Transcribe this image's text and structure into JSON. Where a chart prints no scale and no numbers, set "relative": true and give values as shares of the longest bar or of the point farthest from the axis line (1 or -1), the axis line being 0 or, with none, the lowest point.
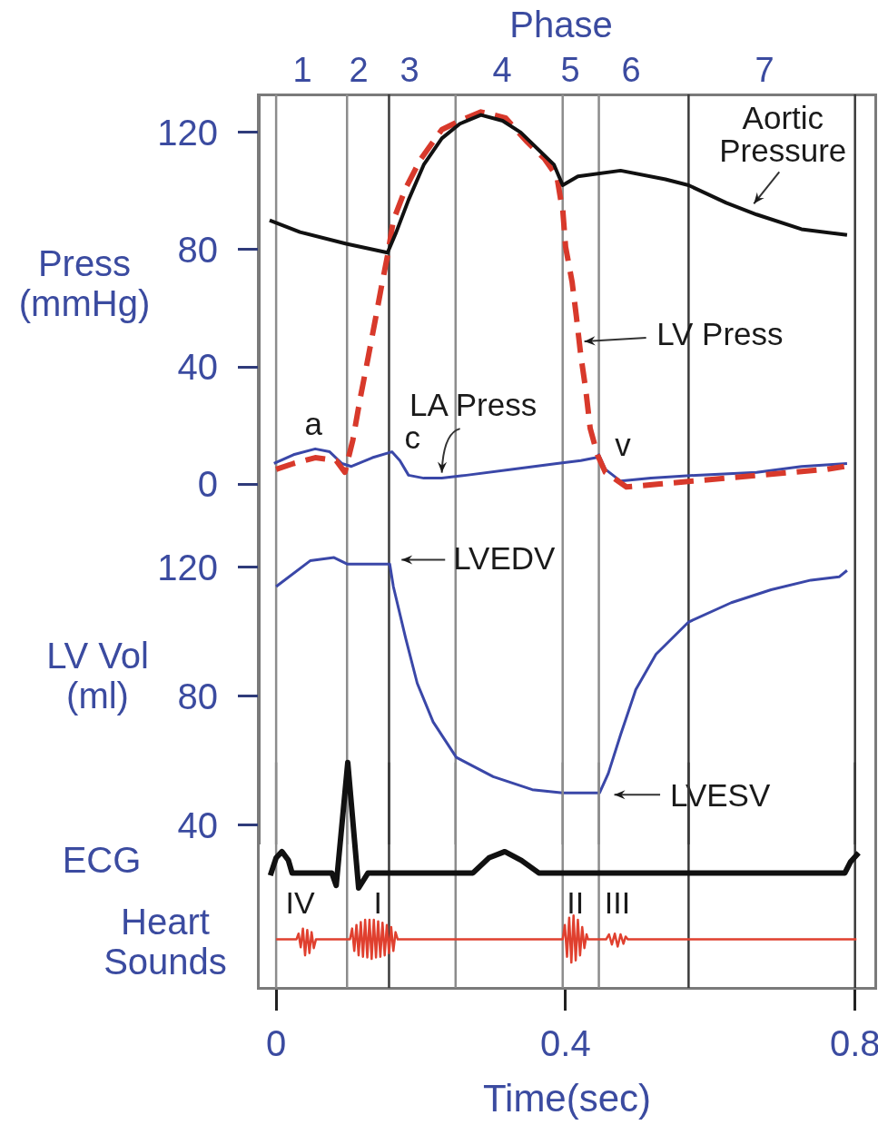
{
  "chart_data": [
    {
      "type": "line",
      "title": "Phase",
      "ylabel": "Press (mmHg)",
      "xlim": [
        -0.024,
        0.828
      ],
      "ylim": [
        -13,
        133
      ],
      "yticks": [
        0,
        40,
        80,
        120
      ],
      "tick_labels": "y",
      "ref_lines": [
        {
          "axis": "x",
          "value": 0,
          "color": "#8c8c8c"
        },
        {
          "axis": "x",
          "value": 0.098,
          "color": "#8c8c8c"
        },
        {
          "axis": "x",
          "value": 0.156,
          "color": "#3a3a3a"
        },
        {
          "axis": "x",
          "value": 0.248,
          "color": "#8c8c8c"
        },
        {
          "axis": "x",
          "value": 0.396,
          "color": "#8c8c8c"
        },
        {
          "axis": "x",
          "value": 0.446,
          "color": "#8c8c8c"
        },
        {
          "axis": "x",
          "value": 0.57,
          "color": "#3a3a3a"
        },
        {
          "axis": "x",
          "value": 0.8,
          "color": "#3a3a3a"
        }
      ],
      "series": [
        {
          "color": "#111111",
          "x": [
            -0.009,
            0.033,
            0.097,
            0.154,
            0.166,
            0.183,
            0.204,
            0.229,
            0.254,
            0.283,
            0.313,
            0.338,
            0.363,
            0.384,
            0.396,
            0.417,
            0.476,
            0.538,
            0.57,
            0.622,
            0.664,
            0.726,
            0.789
          ],
          "values": [
            90,
            86,
            82,
            79,
            86,
            97,
            109,
            118,
            123,
            126,
            124,
            120,
            114,
            109,
            102,
            105,
            107,
            104,
            102,
            96,
            92,
            87,
            85
          ]
        },
        {
          "color": "#d8392b",
          "line_style": "dashed",
          "x": [
            0,
            0.024,
            0.054,
            0.083,
            0.095,
            0.106,
            0.116,
            0.127,
            0.137,
            0.146,
            0.154,
            0.162,
            0.179,
            0.2,
            0.229,
            0.254,
            0.283,
            0.317,
            0.346,
            0.371,
            0.388,
            0.394,
            0.396,
            0.4,
            0.409,
            0.415,
            0.421,
            0.428,
            0.434,
            0.444,
            0.455,
            0.484,
            0.53,
            0.576,
            0.622,
            0.668,
            0.714,
            0.76,
            0.785
          ],
          "values": [
            5,
            7,
            9,
            8,
            4,
            15,
            29,
            43,
            56,
            68,
            78,
            90,
            101,
            111,
            121,
            124,
            127,
            125,
            117,
            111,
            105,
            96,
            94,
            81,
            69,
            57,
            44,
            32,
            19,
            10,
            4,
            -1,
            0,
            1,
            2,
            3,
            4,
            5,
            6
          ]
        },
        {
          "color": "#3a47a8",
          "x": [
            -0.003,
            0.024,
            0.054,
            0.074,
            0.091,
            0.104,
            0.133,
            0.16,
            0.171,
            0.183,
            0.204,
            0.229,
            0.263,
            0.325,
            0.388,
            0.421,
            0.442,
            0.446,
            0.455,
            0.476,
            0.518,
            0.58,
            0.664,
            0.726,
            0.789
          ],
          "values": [
            7,
            10,
            12,
            11,
            7,
            6,
            9,
            11,
            8,
            3,
            2,
            2,
            3,
            5,
            7,
            8,
            9,
            10,
            5,
            1,
            2,
            3,
            4,
            6,
            7
          ]
        }
      ],
      "annotations": [
        {
          "text": "a",
          "x": 0.054,
          "y": 12
        },
        {
          "text": "c",
          "x": 0.16,
          "y": 11
        },
        {
          "text": "v",
          "x": 0.446,
          "y": 10
        },
        {
          "text": "Aortic Pressure",
          "x": 0.664,
          "y": 92
        },
        {
          "text": "LV Press",
          "x": 0.421,
          "y": 44
        },
        {
          "text": "LA Press",
          "x": 0.229,
          "y": 2
        },
        "1",
        "2",
        "3",
        "4",
        "5",
        "6",
        "7"
      ]
    },
    {
      "type": "line",
      "ylabel": "LV Vol (ml)",
      "xlim": [
        -0.024,
        0.828
      ],
      "ylim": [
        34,
        134
      ],
      "yticks": [
        40,
        80,
        120
      ],
      "tick_labels": "y",
      "ref_lines": [
        {
          "axis": "x",
          "value": 0,
          "color": "#8c8c8c"
        },
        {
          "axis": "x",
          "value": 0.098,
          "color": "#8c8c8c"
        },
        {
          "axis": "x",
          "value": 0.156,
          "color": "#3a3a3a"
        },
        {
          "axis": "x",
          "value": 0.248,
          "color": "#8c8c8c"
        },
        {
          "axis": "x",
          "value": 0.396,
          "color": "#8c8c8c"
        },
        {
          "axis": "x",
          "value": 0.446,
          "color": "#8c8c8c"
        },
        {
          "axis": "x",
          "value": 0.57,
          "color": "#3a3a3a"
        },
        {
          "axis": "x",
          "value": 0.8,
          "color": "#3a3a3a"
        }
      ],
      "series": [
        {
          "color": "#3a47a8",
          "x": [
            0,
            0.047,
            0.08,
            0.098,
            0.157,
            0.162,
            0.179,
            0.195,
            0.217,
            0.249,
            0.3,
            0.354,
            0.396,
            0.447,
            0.459,
            0.476,
            0.497,
            0.525,
            0.57,
            0.629,
            0.684,
            0.739,
            0.778,
            0.789
          ],
          "values": [
            114,
            122,
            123,
            121,
            121,
            114,
            98,
            84,
            72,
            61,
            55,
            51,
            50,
            50,
            56,
            68,
            82,
            93,
            103,
            109,
            113,
            116,
            117,
            119
          ]
        }
      ],
      "annotations": [
        {
          "text": "LVEDV",
          "x": 0.157,
          "y": 121
        },
        {
          "text": "LVESV",
          "x": 0.446,
          "y": 50
        }
      ]
    },
    {
      "type": "line",
      "relative": true,
      "ylabel": "ECG",
      "xlim": [
        -0.024,
        0.828
      ],
      "tick_labels": false,
      "ref_lines": [
        {
          "axis": "x",
          "value": 0,
          "color": "#8c8c8c"
        },
        {
          "axis": "x",
          "value": 0.098,
          "color": "#8c8c8c"
        },
        {
          "axis": "x",
          "value": 0.156,
          "color": "#3a3a3a"
        },
        {
          "axis": "x",
          "value": 0.248,
          "color": "#8c8c8c"
        },
        {
          "axis": "x",
          "value": 0.396,
          "color": "#8c8c8c"
        },
        {
          "axis": "x",
          "value": 0.446,
          "color": "#8c8c8c"
        },
        {
          "axis": "x",
          "value": 0.57,
          "color": "#3a3a3a"
        },
        {
          "axis": "x",
          "value": 0.8,
          "color": "#3a3a3a"
        }
      ],
      "series": [
        {
          "color": "#111111",
          "x": [
            -0.008,
            0,
            0.008,
            0.017,
            0.022,
            0.077,
            0.083,
            0.099,
            0.114,
            0.127,
            0.272,
            0.294,
            0.316,
            0.339,
            0.363,
            0.786,
            0.794,
            0.805
          ],
          "values": [
            0.1,
            0.24,
            0.29,
            0.22,
            0.12,
            0.12,
            0.02,
            1,
            0,
            0.12,
            0.12,
            0.24,
            0.29,
            0.22,
            0.12,
            0.12,
            0.21,
            0.28
          ]
        }
      ]
    },
    {
      "type": "line",
      "relative": true,
      "ylabel": "Heart Sounds",
      "xlabel": "Time(sec)",
      "xlim": [
        -0.024,
        0.828
      ],
      "xticks": [
        0,
        0.4,
        0.8
      ],
      "tick_labels": "x",
      "ref_lines": [
        {
          "axis": "x",
          "value": 0,
          "color": "#8c8c8c"
        },
        {
          "axis": "x",
          "value": 0.098,
          "color": "#8c8c8c"
        },
        {
          "axis": "x",
          "value": 0.156,
          "color": "#3a3a3a"
        },
        {
          "axis": "x",
          "value": 0.248,
          "color": "#8c8c8c"
        },
        {
          "axis": "x",
          "value": 0.396,
          "color": "#8c8c8c"
        },
        {
          "axis": "x",
          "value": 0.446,
          "color": "#8c8c8c"
        },
        {
          "axis": "x",
          "value": 0.57,
          "color": "#3a3a3a"
        },
        {
          "axis": "x",
          "value": 0.8,
          "color": "#3a3a3a"
        }
      ],
      "series": [
        {
          "color": "#e0402f",
          "x": [
            0,
            0.028,
            0.031,
            0.034,
            0.037,
            0.04,
            0.043,
            0.046,
            0.049,
            0.052,
            0.055,
            0.102,
            0.105,
            0.108,
            0.111,
            0.114,
            0.117,
            0.12,
            0.123,
            0.126,
            0.129,
            0.132,
            0.135,
            0.138,
            0.141,
            0.144,
            0.147,
            0.15,
            0.153,
            0.156,
            0.159,
            0.162,
            0.165,
            0.168,
            0.396,
            0.399,
            0.402,
            0.405,
            0.408,
            0.411,
            0.414,
            0.417,
            0.42,
            0.423,
            0.426,
            0.429,
            0.431,
            0.456,
            0.46,
            0.464,
            0.468,
            0.472,
            0.476,
            0.48,
            0.483,
            0.486,
            0.802
          ],
          "values": [
            0.67,
            0.67,
            0.75,
            0.56,
            0.82,
            0.45,
            0.8,
            0.48,
            0.77,
            0.55,
            0.67,
            0.67,
            0.82,
            0.51,
            0.87,
            0.45,
            0.91,
            0.43,
            0.94,
            0.42,
            0.94,
            0.4,
            0.94,
            0.42,
            0.92,
            0.43,
            0.9,
            0.45,
            0.87,
            0.48,
            0.84,
            0.51,
            0.77,
            0.67,
            0.67,
            0.87,
            0.43,
            0.97,
            0.35,
            1,
            0.38,
            0.94,
            0.45,
            0.84,
            0.55,
            0.74,
            0.67,
            0.67,
            0.74,
            0.6,
            0.75,
            0.57,
            0.74,
            0.61,
            0.71,
            0.67,
            0.67
          ]
        }
      ],
      "annotations": [
        "IV",
        "I",
        "II",
        "III"
      ]
    }
  ]
}
